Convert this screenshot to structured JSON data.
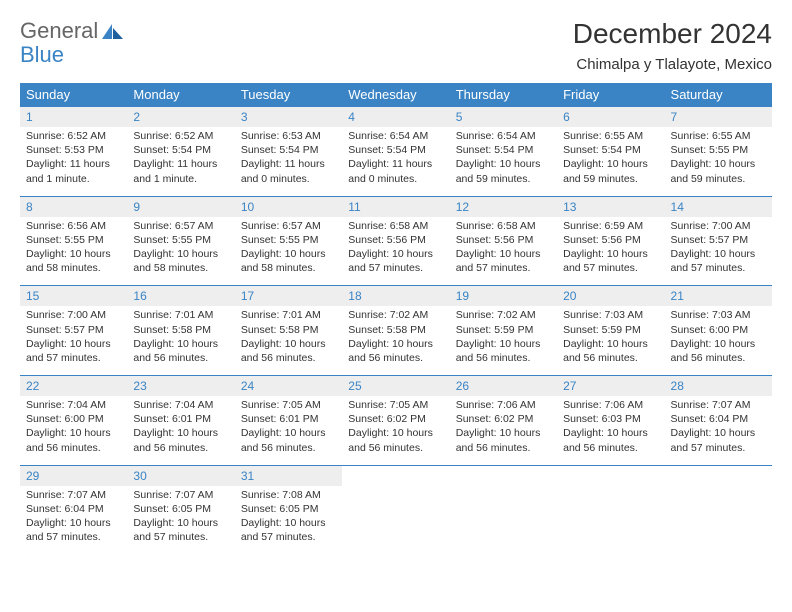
{
  "brand": {
    "part1": "General",
    "part2": "Blue"
  },
  "title": "December 2024",
  "location": "Chimalpa y Tlalayote, Mexico",
  "colors": {
    "header_bg": "#3a84c5",
    "header_text": "#ffffff",
    "daynum_bg": "#eeeeee",
    "daynum_text": "#3a84c5",
    "rule": "#3a84c5",
    "body_text": "#333333",
    "background": "#ffffff"
  },
  "dow": [
    "Sunday",
    "Monday",
    "Tuesday",
    "Wednesday",
    "Thursday",
    "Friday",
    "Saturday"
  ],
  "weeks": [
    [
      {
        "n": "1",
        "sr": "Sunrise: 6:52 AM",
        "ss": "Sunset: 5:53 PM",
        "dl": "Daylight: 11 hours and 1 minute."
      },
      {
        "n": "2",
        "sr": "Sunrise: 6:52 AM",
        "ss": "Sunset: 5:54 PM",
        "dl": "Daylight: 11 hours and 1 minute."
      },
      {
        "n": "3",
        "sr": "Sunrise: 6:53 AM",
        "ss": "Sunset: 5:54 PM",
        "dl": "Daylight: 11 hours and 0 minutes."
      },
      {
        "n": "4",
        "sr": "Sunrise: 6:54 AM",
        "ss": "Sunset: 5:54 PM",
        "dl": "Daylight: 11 hours and 0 minutes."
      },
      {
        "n": "5",
        "sr": "Sunrise: 6:54 AM",
        "ss": "Sunset: 5:54 PM",
        "dl": "Daylight: 10 hours and 59 minutes."
      },
      {
        "n": "6",
        "sr": "Sunrise: 6:55 AM",
        "ss": "Sunset: 5:54 PM",
        "dl": "Daylight: 10 hours and 59 minutes."
      },
      {
        "n": "7",
        "sr": "Sunrise: 6:55 AM",
        "ss": "Sunset: 5:55 PM",
        "dl": "Daylight: 10 hours and 59 minutes."
      }
    ],
    [
      {
        "n": "8",
        "sr": "Sunrise: 6:56 AM",
        "ss": "Sunset: 5:55 PM",
        "dl": "Daylight: 10 hours and 58 minutes."
      },
      {
        "n": "9",
        "sr": "Sunrise: 6:57 AM",
        "ss": "Sunset: 5:55 PM",
        "dl": "Daylight: 10 hours and 58 minutes."
      },
      {
        "n": "10",
        "sr": "Sunrise: 6:57 AM",
        "ss": "Sunset: 5:55 PM",
        "dl": "Daylight: 10 hours and 58 minutes."
      },
      {
        "n": "11",
        "sr": "Sunrise: 6:58 AM",
        "ss": "Sunset: 5:56 PM",
        "dl": "Daylight: 10 hours and 57 minutes."
      },
      {
        "n": "12",
        "sr": "Sunrise: 6:58 AM",
        "ss": "Sunset: 5:56 PM",
        "dl": "Daylight: 10 hours and 57 minutes."
      },
      {
        "n": "13",
        "sr": "Sunrise: 6:59 AM",
        "ss": "Sunset: 5:56 PM",
        "dl": "Daylight: 10 hours and 57 minutes."
      },
      {
        "n": "14",
        "sr": "Sunrise: 7:00 AM",
        "ss": "Sunset: 5:57 PM",
        "dl": "Daylight: 10 hours and 57 minutes."
      }
    ],
    [
      {
        "n": "15",
        "sr": "Sunrise: 7:00 AM",
        "ss": "Sunset: 5:57 PM",
        "dl": "Daylight: 10 hours and 57 minutes."
      },
      {
        "n": "16",
        "sr": "Sunrise: 7:01 AM",
        "ss": "Sunset: 5:58 PM",
        "dl": "Daylight: 10 hours and 56 minutes."
      },
      {
        "n": "17",
        "sr": "Sunrise: 7:01 AM",
        "ss": "Sunset: 5:58 PM",
        "dl": "Daylight: 10 hours and 56 minutes."
      },
      {
        "n": "18",
        "sr": "Sunrise: 7:02 AM",
        "ss": "Sunset: 5:58 PM",
        "dl": "Daylight: 10 hours and 56 minutes."
      },
      {
        "n": "19",
        "sr": "Sunrise: 7:02 AM",
        "ss": "Sunset: 5:59 PM",
        "dl": "Daylight: 10 hours and 56 minutes."
      },
      {
        "n": "20",
        "sr": "Sunrise: 7:03 AM",
        "ss": "Sunset: 5:59 PM",
        "dl": "Daylight: 10 hours and 56 minutes."
      },
      {
        "n": "21",
        "sr": "Sunrise: 7:03 AM",
        "ss": "Sunset: 6:00 PM",
        "dl": "Daylight: 10 hours and 56 minutes."
      }
    ],
    [
      {
        "n": "22",
        "sr": "Sunrise: 7:04 AM",
        "ss": "Sunset: 6:00 PM",
        "dl": "Daylight: 10 hours and 56 minutes."
      },
      {
        "n": "23",
        "sr": "Sunrise: 7:04 AM",
        "ss": "Sunset: 6:01 PM",
        "dl": "Daylight: 10 hours and 56 minutes."
      },
      {
        "n": "24",
        "sr": "Sunrise: 7:05 AM",
        "ss": "Sunset: 6:01 PM",
        "dl": "Daylight: 10 hours and 56 minutes."
      },
      {
        "n": "25",
        "sr": "Sunrise: 7:05 AM",
        "ss": "Sunset: 6:02 PM",
        "dl": "Daylight: 10 hours and 56 minutes."
      },
      {
        "n": "26",
        "sr": "Sunrise: 7:06 AM",
        "ss": "Sunset: 6:02 PM",
        "dl": "Daylight: 10 hours and 56 minutes."
      },
      {
        "n": "27",
        "sr": "Sunrise: 7:06 AM",
        "ss": "Sunset: 6:03 PM",
        "dl": "Daylight: 10 hours and 56 minutes."
      },
      {
        "n": "28",
        "sr": "Sunrise: 7:07 AM",
        "ss": "Sunset: 6:04 PM",
        "dl": "Daylight: 10 hours and 57 minutes."
      }
    ],
    [
      {
        "n": "29",
        "sr": "Sunrise: 7:07 AM",
        "ss": "Sunset: 6:04 PM",
        "dl": "Daylight: 10 hours and 57 minutes."
      },
      {
        "n": "30",
        "sr": "Sunrise: 7:07 AM",
        "ss": "Sunset: 6:05 PM",
        "dl": "Daylight: 10 hours and 57 minutes."
      },
      {
        "n": "31",
        "sr": "Sunrise: 7:08 AM",
        "ss": "Sunset: 6:05 PM",
        "dl": "Daylight: 10 hours and 57 minutes."
      },
      null,
      null,
      null,
      null
    ]
  ]
}
